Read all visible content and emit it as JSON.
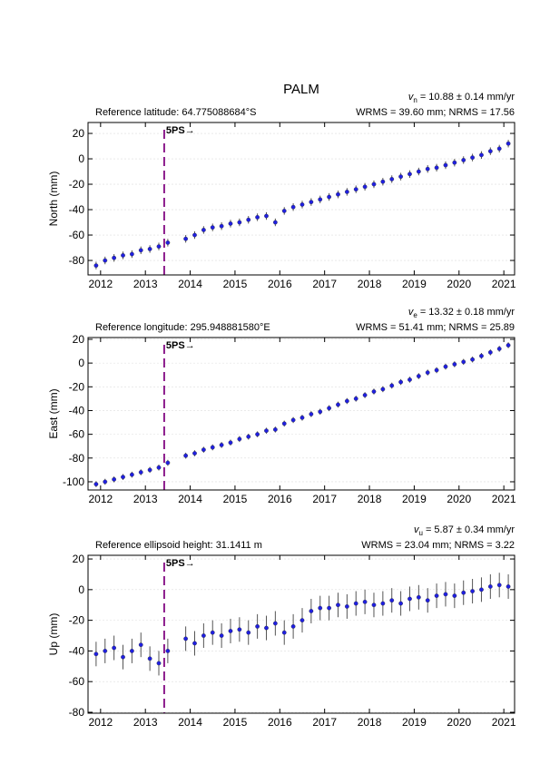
{
  "title": "PALM",
  "chart_data": [
    {
      "type": "scatter",
      "ylabel": "North (mm)",
      "reference": "Reference latitude: 64.775088684°S",
      "rate": {
        "symbol": "v",
        "subscript": "n",
        "text": "= 10.88 ± 0.14 mm/yr"
      },
      "stats": "WRMS = 39.60 mm; NRMS = 17.56",
      "xlim": [
        2011.72,
        2021.24
      ],
      "xticks": [
        2012,
        2013,
        2014,
        2015,
        2016,
        2017,
        2018,
        2019,
        2020,
        2021
      ],
      "ylim": [
        -91.4,
        28.6
      ],
      "yticks": [
        -80,
        -60,
        -40,
        -20,
        0,
        20
      ],
      "grid": true,
      "event": {
        "x": 2013.42,
        "label": "5PS→",
        "color": "#8b1a8b"
      },
      "series": [
        {
          "color": "#1f1fe0",
          "error_color": "#555555",
          "error": 3,
          "x": [
            2011.9,
            2012.1,
            2012.3,
            2012.5,
            2012.7,
            2012.9,
            2013.1,
            2013.3,
            2013.5,
            2013.9,
            2014.1,
            2014.3,
            2014.5,
            2014.7,
            2014.9,
            2015.1,
            2015.3,
            2015.5,
            2015.7,
            2015.9,
            2016.1,
            2016.3,
            2016.5,
            2016.7,
            2016.9,
            2017.1,
            2017.3,
            2017.5,
            2017.7,
            2017.9,
            2018.1,
            2018.3,
            2018.5,
            2018.7,
            2018.9,
            2019.1,
            2019.3,
            2019.5,
            2019.7,
            2019.9,
            2020.1,
            2020.3,
            2020.5,
            2020.7,
            2020.9,
            2021.1
          ],
          "values": [
            -84,
            -80,
            -78,
            -76,
            -75,
            -72,
            -71,
            -69,
            -66,
            -63,
            -60,
            -56,
            -54,
            -53,
            -51,
            -50,
            -48,
            -46,
            -45,
            -50,
            -41,
            -38,
            -36,
            -34,
            -32,
            -30,
            -28,
            -26,
            -24,
            -22,
            -20,
            -18,
            -16,
            -14,
            -12,
            -10,
            -8,
            -7,
            -5,
            -3,
            -1,
            1,
            3,
            6,
            8,
            12
          ]
        }
      ]
    },
    {
      "type": "scatter",
      "ylabel": "East (mm)",
      "reference": "Reference longitude: 295.948881580°E",
      "rate": {
        "symbol": "v",
        "subscript": "e",
        "text": "= 13.32 ± 0.18 mm/yr"
      },
      "stats": "WRMS = 51.41 mm; NRMS = 25.89",
      "xlim": [
        2011.72,
        2021.24
      ],
      "xticks": [
        2012,
        2013,
        2014,
        2015,
        2016,
        2017,
        2018,
        2019,
        2020,
        2021
      ],
      "ylim": [
        -106.9,
        21.5
      ],
      "yticks": [
        -100,
        -80,
        -60,
        -40,
        -20,
        0,
        20
      ],
      "grid": true,
      "event": {
        "x": 2013.42,
        "label": "5PS→",
        "color": "#8b1a8b"
      },
      "series": [
        {
          "color": "#1f1fe0",
          "error_color": "#555555",
          "error": 2.5,
          "x": [
            2011.9,
            2012.1,
            2012.3,
            2012.5,
            2012.7,
            2012.9,
            2013.1,
            2013.3,
            2013.5,
            2013.9,
            2014.1,
            2014.3,
            2014.5,
            2014.7,
            2014.9,
            2015.1,
            2015.3,
            2015.5,
            2015.7,
            2015.9,
            2016.1,
            2016.3,
            2016.5,
            2016.7,
            2016.9,
            2017.1,
            2017.3,
            2017.5,
            2017.7,
            2017.9,
            2018.1,
            2018.3,
            2018.5,
            2018.7,
            2018.9,
            2019.1,
            2019.3,
            2019.5,
            2019.7,
            2019.9,
            2020.1,
            2020.3,
            2020.5,
            2020.7,
            2020.9,
            2021.1
          ],
          "values": [
            -102,
            -100,
            -98,
            -96,
            -94,
            -92,
            -90,
            -88,
            -84,
            -78,
            -76,
            -73,
            -71,
            -69,
            -67,
            -64,
            -62,
            -60,
            -57,
            -56,
            -51,
            -48,
            -46,
            -43,
            -41,
            -38,
            -35,
            -32,
            -30,
            -27,
            -24,
            -22,
            -19,
            -16,
            -14,
            -11,
            -8,
            -6,
            -3,
            -1,
            1,
            3,
            6,
            9,
            12,
            15
          ]
        }
      ]
    },
    {
      "type": "scatter",
      "ylabel": "Up (mm)",
      "reference": "Reference ellipsoid height: 31.1411 m",
      "rate": {
        "symbol": "v",
        "subscript": "u",
        "text": "= 5.87 ± 0.34 mm/yr"
      },
      "stats": "WRMS = 23.04 mm; NRMS = 3.22",
      "xlim": [
        2011.72,
        2021.24
      ],
      "xticks": [
        2012,
        2013,
        2014,
        2015,
        2016,
        2017,
        2018,
        2019,
        2020,
        2021
      ],
      "ylim": [
        -80.6,
        22.4
      ],
      "yticks": [
        -80,
        -60,
        -40,
        -20,
        0,
        20
      ],
      "grid": true,
      "event": {
        "x": 2013.42,
        "label": "5PS→",
        "color": "#8b1a8b"
      },
      "series": [
        {
          "color": "#1f1fe0",
          "error_color": "#555555",
          "error": 8,
          "x": [
            2011.9,
            2012.1,
            2012.3,
            2012.5,
            2012.7,
            2012.9,
            2013.1,
            2013.3,
            2013.5,
            2013.9,
            2014.1,
            2014.3,
            2014.5,
            2014.7,
            2014.9,
            2015.1,
            2015.3,
            2015.5,
            2015.7,
            2015.9,
            2016.1,
            2016.3,
            2016.5,
            2016.7,
            2016.9,
            2017.1,
            2017.3,
            2017.5,
            2017.7,
            2017.9,
            2018.1,
            2018.3,
            2018.5,
            2018.7,
            2018.9,
            2019.1,
            2019.3,
            2019.5,
            2019.7,
            2019.9,
            2020.1,
            2020.3,
            2020.5,
            2020.7,
            2020.9,
            2021.1
          ],
          "values": [
            -42,
            -40,
            -38,
            -44,
            -40,
            -36,
            -45,
            -48,
            -40,
            -32,
            -35,
            -30,
            -28,
            -30,
            -27,
            -26,
            -28,
            -24,
            -25,
            -22,
            -28,
            -24,
            -20,
            -14,
            -12,
            -12,
            -10,
            -11,
            -9,
            -8,
            -10,
            -9,
            -7,
            -9,
            -6,
            -5,
            -7,
            -4,
            -3,
            -4,
            -2,
            -1,
            0,
            2,
            3,
            2
          ]
        }
      ]
    }
  ]
}
